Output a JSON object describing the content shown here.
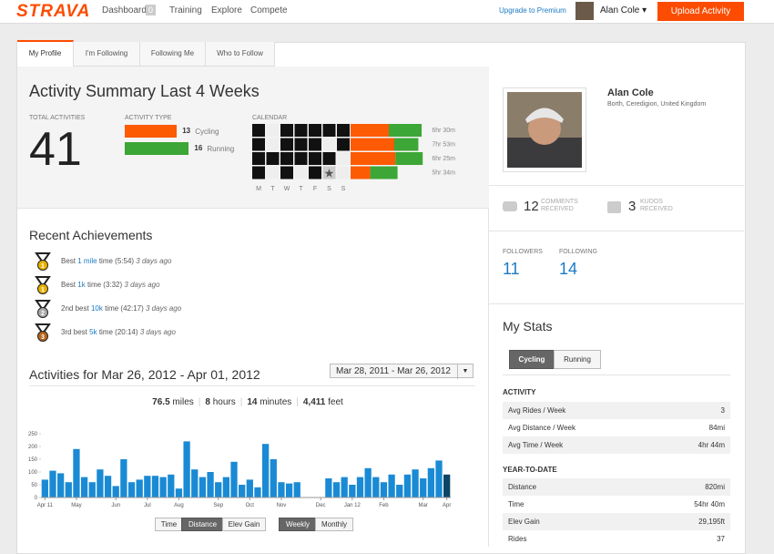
{
  "nav": {
    "logo": "STRAVA",
    "items": [
      "Dashboard",
      "Training",
      "Explore",
      "Compete"
    ],
    "badge": "0",
    "upgrade": "Upgrade to Premium",
    "user": "Alan Cole ▾",
    "upload": "Upload Activity"
  },
  "tabs": [
    "My Profile",
    "I'm Following",
    "Following Me",
    "Who to Follow"
  ],
  "summary": {
    "title": "Activity Summary Last 4 Weeks",
    "total_label": "TOTAL ACTIVITIES",
    "total": 41,
    "type_label": "ACTIVITY TYPE",
    "cycling": {
      "count": 13,
      "label": "Cycling",
      "color": "#fc5a03"
    },
    "running": {
      "count": 16,
      "label": "Running",
      "color": "#3ca636"
    },
    "calendar_label": "CALENDAR",
    "days": [
      "M",
      "T",
      "W",
      "T",
      "F",
      "S",
      "S"
    ],
    "weeks": [
      {
        "days": [
          1,
          0,
          1,
          1,
          1,
          1,
          1
        ],
        "cycling": 3.5,
        "running": 3.0,
        "duration": "6hr 30m"
      },
      {
        "days": [
          1,
          0,
          1,
          1,
          1,
          0,
          1
        ],
        "cycling": 4.0,
        "running": 2.2,
        "duration": "7hr 53m"
      },
      {
        "days": [
          1,
          1,
          1,
          1,
          1,
          1,
          0
        ],
        "cycling": 4.1,
        "running": 2.5,
        "duration": "6hr 25m"
      },
      {
        "days": [
          1,
          0,
          1,
          0,
          1,
          2,
          0
        ],
        "cycling": 1.8,
        "running": 2.5,
        "duration": "5hr 34m"
      }
    ]
  },
  "achievements": {
    "title": "Recent Achievements",
    "items": [
      {
        "rank": 1,
        "prefix": "Best",
        "link": "1 mile",
        "suffix": "time (5:54)",
        "when": "3 days ago"
      },
      {
        "rank": 1,
        "prefix": "Best",
        "link": "1k",
        "suffix": "time (3:32)",
        "when": "3 days ago"
      },
      {
        "rank": 2,
        "prefix": "2nd best",
        "link": "10k",
        "suffix": "time (42:17)",
        "when": "3 days ago"
      },
      {
        "rank": 3,
        "prefix": "3rd best",
        "link": "5k",
        "suffix": "time (20:14)",
        "when": "3 days ago"
      }
    ]
  },
  "activities": {
    "title": "Activities for Mar 26, 2012 - Apr 01, 2012",
    "range": "Mar 28, 2011 - Mar 26, 2012",
    "stats": [
      {
        "value": "76.5",
        "unit": "miles"
      },
      {
        "value": "8",
        "unit": "hours"
      },
      {
        "value": "14",
        "unit": "minutes"
      },
      {
        "value": "4,411",
        "unit": "feet"
      }
    ],
    "buttons": [
      "Time",
      "Distance",
      "Elev Gain"
    ],
    "periods": [
      "Weekly",
      "Monthly"
    ]
  },
  "chart_data": {
    "type": "bar",
    "color": "#1a8ad4",
    "selected_color": "#0b4466",
    "selected_index": 51,
    "categories": [
      "Apr 11",
      null,
      null,
      null,
      "May",
      null,
      null,
      null,
      null,
      "Jun",
      null,
      null,
      null,
      "Jul",
      null,
      null,
      null,
      "Aug",
      null,
      null,
      null,
      null,
      "Sep",
      null,
      null,
      null,
      "Oct",
      null,
      null,
      null,
      "Nov",
      null,
      null,
      null,
      null,
      "Dec",
      null,
      null,
      null,
      "Jan 12",
      null,
      null,
      null,
      "Feb",
      null,
      null,
      null,
      null,
      "Mar",
      null,
      null,
      "Apr"
    ],
    "values": [
      70,
      105,
      95,
      60,
      190,
      80,
      60,
      110,
      85,
      45,
      150,
      60,
      70,
      85,
      85,
      80,
      90,
      35,
      220,
      110,
      80,
      100,
      60,
      80,
      140,
      50,
      70,
      40,
      210,
      150,
      60,
      55,
      60,
      0,
      0,
      0,
      75,
      60,
      80,
      50,
      80,
      115,
      80,
      60,
      90,
      50,
      90,
      110,
      75,
      115,
      145,
      90
    ],
    "ylim": [
      0,
      250
    ],
    "yticks": [
      0,
      50,
      100,
      150,
      200,
      250
    ]
  },
  "profile": {
    "name": "Alan Cole",
    "location": "Borth, Ceredigion, United Kingdom",
    "comments": 12,
    "comments_label": [
      "COMMENTS",
      "RECEIVED"
    ],
    "kudos": 3,
    "kudos_label": [
      "KUDOS",
      "RECEIVED"
    ],
    "followers_label": "FOLLOWERS",
    "followers": 11,
    "following_label": "FOLLOWING",
    "following": 14
  },
  "stats": {
    "title": "My Stats",
    "tabs": [
      "Cycling",
      "Running"
    ],
    "activity_label": "ACTIVITY",
    "activity": [
      [
        "Avg Rides / Week",
        "3"
      ],
      [
        "Avg Distance / Week",
        "84mi"
      ],
      [
        "Avg Time / Week",
        "4hr 44m"
      ]
    ],
    "ytd_label": "YEAR-TO-DATE",
    "ytd": [
      [
        "Distance",
        "820mi"
      ],
      [
        "Time",
        "54hr 40m"
      ],
      [
        "Elev Gain",
        "29,195ft"
      ],
      [
        "Rides",
        "37"
      ]
    ]
  }
}
